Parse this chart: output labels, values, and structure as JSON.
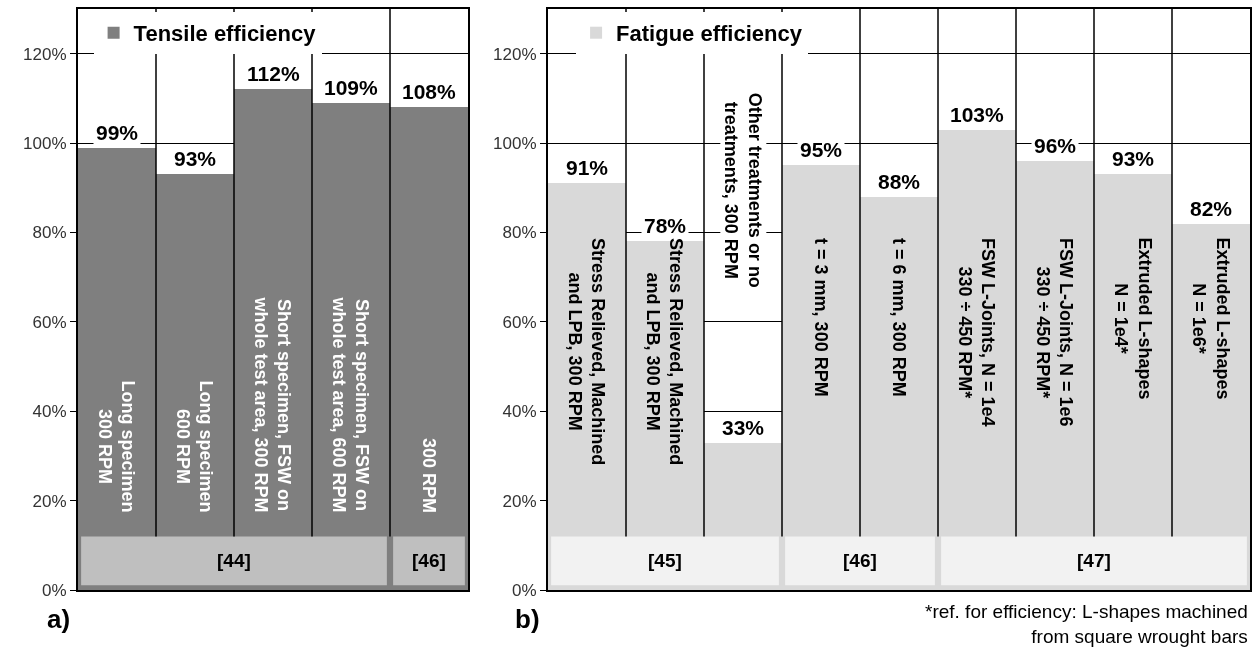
{
  "chart_data": [
    {
      "type": "bar",
      "categories": [
        "Long specimen\n300 RPM",
        "Long specimen\n600 RPM",
        "Short specimen, FSW on\nwhole test area, 300 RPM",
        "Short specimen, FSW on\nwhole test area, 600 RPM",
        "300 RPM"
      ],
      "series": [
        {
          "name": "Tensile efficiency",
          "color": "#7f7f7f",
          "values": [
            99,
            93,
            112,
            109,
            108
          ],
          "value_labels": [
            "99%",
            "93%",
            "112%",
            "109%",
            "108%"
          ]
        }
      ],
      "ylim": [
        0,
        130
      ],
      "yticks": [
        {
          "value": 0,
          "label": "0%"
        },
        {
          "value": 20,
          "label": "20%"
        },
        {
          "value": 40,
          "label": "40%"
        },
        {
          "value": 60,
          "label": "60%"
        },
        {
          "value": 80,
          "label": "80%"
        },
        {
          "value": 100,
          "label": "100%"
        },
        {
          "value": 120,
          "label": "120%"
        }
      ],
      "grid": true,
      "legend": "top left",
      "bands": [
        {
          "axis": "x",
          "from": "Long specimen\n300 RPM",
          "to": "Short specimen, FSW on\nwhole test area, 600 RPM",
          "label": "[44]",
          "color": "#bfbfbf"
        },
        {
          "axis": "x",
          "from": "300 RPM",
          "to": "300 RPM",
          "label": "[46]",
          "color": "#bfbfbf"
        }
      ],
      "annotations": [
        "a)"
      ]
    },
    {
      "type": "bar",
      "categories": [
        "Stress Relieved, Machined\nand LPB, 300 RPM",
        "Stress Relieved, Machined\nand LPB, 300 RPM",
        "Other treatments or no\ntreatments, 300 RPM",
        "t = 3 mm, 300 RPM",
        "t = 6 mm, 300 RPM",
        "FSW L-Joints, N = 1e4\n330 ÷ 450 RPM*",
        "FSW L-Joints, N = 1e6\n330 ÷ 450 RPM*",
        "Extruded L-shapes\nN = 1e4*",
        "Extruded L-shapes\nN = 1e6*"
      ],
      "series": [
        {
          "name": "Fatigue efficiency",
          "color": "#d9d9d9",
          "values": [
            91,
            78,
            33,
            95,
            88,
            103,
            96,
            93,
            82
          ],
          "value_labels": [
            "91%",
            "78%",
            "33%",
            "95%",
            "88%",
            "103%",
            "96%",
            "93%",
            "82%"
          ]
        }
      ],
      "ylim": [
        0,
        130
      ],
      "yticks": [
        {
          "value": 0,
          "label": "0%"
        },
        {
          "value": 20,
          "label": "20%"
        },
        {
          "value": 40,
          "label": "40%"
        },
        {
          "value": 60,
          "label": "60%"
        },
        {
          "value": 80,
          "label": "80%"
        },
        {
          "value": 100,
          "label": "100%"
        },
        {
          "value": 120,
          "label": "120%"
        }
      ],
      "grid": true,
      "legend": "top left",
      "bands": [
        {
          "axis": "x",
          "from": "Stress Relieved, Machined\nand LPB, 300 RPM",
          "to": "Other treatments or no\ntreatments, 300 RPM",
          "label": "[45]",
          "color": "#f2f2f2"
        },
        {
          "axis": "x",
          "from": "t = 3 mm, 300 RPM",
          "to": "t = 6 mm, 300 RPM",
          "label": "[46]",
          "color": "#f2f2f2"
        },
        {
          "axis": "x",
          "from": "FSW L-Joints, N = 1e4\n330 ÷ 450 RPM*",
          "to": "Extruded L-shapes\nN = 1e6*",
          "label": "[47]",
          "color": "#f2f2f2"
        }
      ],
      "annotations": [
        "b)",
        "*ref. for efficiency: L-shapes machined\nfrom square wrought bars"
      ]
    }
  ]
}
